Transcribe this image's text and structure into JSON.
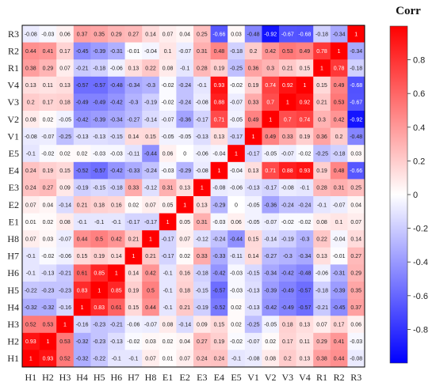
{
  "chart_data": {
    "type": "heatmap",
    "title": "",
    "legend_title": "Corr",
    "labels": [
      "H1",
      "H2",
      "H3",
      "H4",
      "H5",
      "H6",
      "H7",
      "H8",
      "E1",
      "E2",
      "E3",
      "E4",
      "E5",
      "V1",
      "V2",
      "V3",
      "V4",
      "R1",
      "R2",
      "R3"
    ],
    "matrix": [
      [
        1,
        0.93,
        0.52,
        -0.32,
        -0.22,
        -0.1,
        -0.1,
        0.07,
        0.01,
        0.07,
        0.24,
        0.24,
        -0.1,
        -0.08,
        0.08,
        0.2,
        0.13,
        0.38,
        0.44,
        -0.08
      ],
      [
        0.93,
        1,
        0.53,
        -0.32,
        -0.23,
        -0.13,
        -0.02,
        0.03,
        0.02,
        0.04,
        0.27,
        0.19,
        -0.02,
        -0.07,
        0.02,
        0.17,
        0.11,
        0.29,
        0.41,
        -0.03
      ],
      [
        0.52,
        0.53,
        1,
        -0.16,
        -0.23,
        -0.21,
        -0.06,
        -0.07,
        0.08,
        -0.14,
        0.09,
        0.15,
        0.02,
        -0.25,
        -0.05,
        0.18,
        0.13,
        0.07,
        0.17,
        0.06
      ],
      [
        -0.32,
        -0.32,
        -0.16,
        1,
        0.83,
        0.61,
        0.15,
        0.44,
        -0.1,
        0.21,
        -0.19,
        -0.52,
        0.02,
        -0.13,
        -0.42,
        -0.49,
        -0.57,
        -0.21,
        -0.45,
        0.37
      ],
      [
        -0.22,
        -0.23,
        -0.23,
        0.83,
        1,
        0.85,
        0.19,
        0.5,
        -0.1,
        0.18,
        -0.15,
        -0.57,
        -0.03,
        -0.13,
        -0.39,
        -0.49,
        -0.57,
        -0.18,
        -0.39,
        0.35
      ],
      [
        -0.1,
        -0.13,
        -0.21,
        0.61,
        0.85,
        1,
        0.14,
        0.42,
        -0.1,
        0.16,
        -0.18,
        -0.42,
        -0.03,
        -0.15,
        -0.34,
        -0.42,
        -0.48,
        -0.06,
        -0.31,
        0.29
      ],
      [
        -0.1,
        -0.02,
        -0.06,
        0.15,
        0.19,
        0.14,
        1,
        0.21,
        -0.17,
        0.02,
        0.33,
        -0.33,
        -0.11,
        0.14,
        -0.27,
        -0.3,
        -0.34,
        0.13,
        -0.01,
        0.27
      ],
      [
        0.07,
        0.03,
        -0.07,
        0.44,
        0.5,
        0.42,
        0.21,
        1,
        -0.17,
        0.07,
        -0.12,
        -0.24,
        -0.44,
        0.15,
        -0.14,
        -0.19,
        -0.3,
        0.22,
        -0.04,
        0.14
      ],
      [
        0.01,
        0.02,
        0.08,
        -0.1,
        -0.1,
        -0.1,
        -0.17,
        -0.17,
        1,
        0.05,
        0.31,
        -0.03,
        0.06,
        -0.05,
        -0.07,
        -0.02,
        -0.02,
        0.08,
        0.1,
        0.07
      ],
      [
        0.07,
        0.04,
        -0.14,
        0.21,
        0.18,
        0.16,
        0.02,
        0.07,
        0.05,
        1,
        0.13,
        -0.29,
        0,
        -0.05,
        -0.36,
        -0.24,
        -0.24,
        -0.1,
        -0.07,
        0.04
      ],
      [
        0.24,
        0.27,
        0.09,
        -0.19,
        -0.15,
        -0.18,
        0.33,
        -0.12,
        0.31,
        0.13,
        1,
        -0.08,
        -0.06,
        -0.13,
        -0.17,
        -0.08,
        -0.1,
        0.28,
        0.31,
        0.25
      ],
      [
        0.24,
        0.19,
        0.15,
        -0.52,
        -0.57,
        -0.42,
        -0.33,
        -0.24,
        -0.03,
        -0.29,
        -0.08,
        1,
        -0.04,
        0.13,
        0.71,
        0.88,
        0.93,
        0.19,
        0.48,
        -0.66
      ],
      [
        -0.1,
        -0.02,
        0.02,
        0.02,
        -0.03,
        -0.03,
        -0.11,
        -0.44,
        0.06,
        0,
        -0.06,
        -0.04,
        1,
        -0.17,
        -0.05,
        -0.07,
        -0.02,
        -0.25,
        -0.18,
        0.03
      ],
      [
        -0.08,
        -0.07,
        -0.25,
        -0.13,
        -0.13,
        -0.15,
        0.14,
        0.15,
        -0.05,
        -0.05,
        -0.13,
        0.13,
        -0.17,
        1,
        0.49,
        0.33,
        0.19,
        0.36,
        0.2,
        -0.48
      ],
      [
        0.08,
        0.02,
        -0.05,
        -0.42,
        -0.39,
        -0.34,
        -0.27,
        -0.14,
        -0.07,
        -0.36,
        -0.17,
        0.71,
        -0.05,
        0.49,
        1,
        0.7,
        0.74,
        0.3,
        0.42,
        -0.92
      ],
      [
        0.2,
        0.17,
        0.18,
        -0.49,
        -0.49,
        -0.42,
        -0.3,
        -0.19,
        -0.02,
        -0.24,
        -0.08,
        0.88,
        -0.07,
        0.33,
        0.7,
        1,
        0.92,
        0.21,
        0.53,
        -0.67
      ],
      [
        0.13,
        0.11,
        0.13,
        -0.57,
        -0.57,
        -0.48,
        -0.34,
        -0.3,
        -0.02,
        -0.24,
        -0.1,
        0.93,
        -0.02,
        0.19,
        0.74,
        0.92,
        1,
        0.15,
        0.49,
        -0.68
      ],
      [
        0.38,
        0.29,
        0.07,
        -0.21,
        -0.18,
        -0.06,
        0.13,
        0.22,
        0.08,
        -0.1,
        0.28,
        0.19,
        -0.25,
        0.36,
        0.3,
        0.21,
        0.15,
        1,
        0.78,
        -0.18
      ],
      [
        0.44,
        0.41,
        0.17,
        -0.45,
        -0.39,
        -0.31,
        -0.01,
        -0.04,
        0.1,
        -0.07,
        0.31,
        0.48,
        -0.18,
        0.2,
        0.42,
        0.53,
        0.49,
        0.78,
        1,
        -0.34
      ],
      [
        -0.08,
        -0.03,
        0.06,
        0.37,
        0.35,
        0.29,
        0.27,
        0.14,
        0.07,
        0.04,
        0.25,
        -0.66,
        0.03,
        -0.48,
        -0.92,
        -0.67,
        -0.68,
        -0.18,
        -0.34,
        1
      ]
    ],
    "color_range": [
      -1,
      1
    ],
    "colorbar_ticks": [
      -0.8,
      -0.6,
      -0.4,
      -0.2,
      0,
      0.2,
      0.4,
      0.6,
      0.8
    ],
    "colors": {
      "negative": "#0000ff",
      "neutral": "#ffffff",
      "positive": "#ff0000"
    }
  }
}
